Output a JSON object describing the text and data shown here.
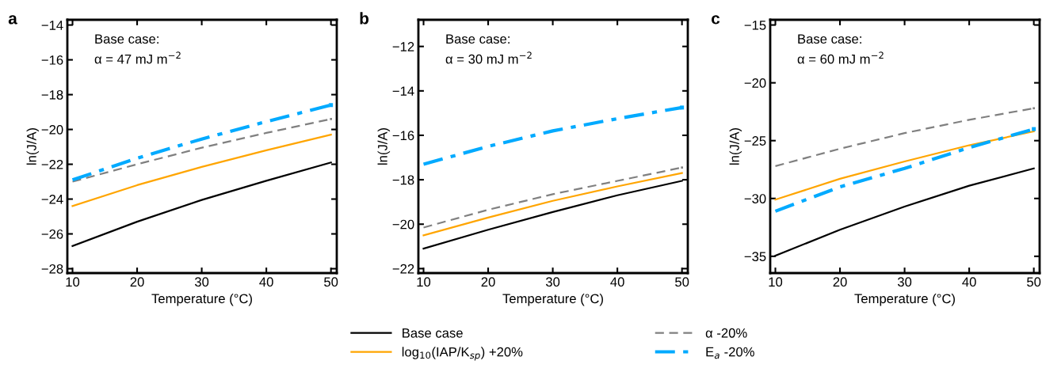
{
  "chart_data": [
    {
      "type": "line",
      "title": "a",
      "xlabel": "Temperature (°C)",
      "ylabel": "ln(J/A)",
      "x": [
        10,
        20,
        30,
        40,
        50
      ],
      "xlim": [
        9.2,
        50.9
      ],
      "xticks": [
        10,
        20,
        30,
        40,
        50
      ],
      "ylim": [
        -28.25,
        -13.7
      ],
      "yticks": [
        -28,
        -26,
        -24,
        -22,
        -20,
        -18,
        -16,
        -14
      ],
      "grid": false,
      "annotations": [
        "Base case:",
        "α = 47 mJ m$^{−2}$"
      ],
      "series": [
        {
          "color": "#000000",
          "line_style": "solid",
          "values": [
            -26.7,
            -25.3,
            -24.05,
            -22.95,
            -21.9
          ]
        },
        {
          "color": "#ffa500",
          "line_style": "solid",
          "values": [
            -24.4,
            -23.2,
            -22.15,
            -21.2,
            -20.3
          ]
        },
        {
          "color": "#808080",
          "line_style": "dashed",
          "values": [
            -23.0,
            -22.0,
            -21.05,
            -20.2,
            -19.4
          ]
        },
        {
          "color": "#00aaff",
          "line_style": "dashdot",
          "values": [
            -22.9,
            -21.65,
            -20.55,
            -19.55,
            -18.6
          ]
        }
      ]
    },
    {
      "type": "line",
      "title": "b",
      "xlabel": "Temperature (°C)",
      "ylabel": "ln(J/A)",
      "x": [
        10,
        20,
        30,
        40,
        50
      ],
      "xlim": [
        9.2,
        50.9
      ],
      "xticks": [
        10,
        20,
        30,
        40,
        50
      ],
      "ylim": [
        -22.2,
        -10.8
      ],
      "yticks": [
        -22,
        -20,
        -18,
        -16,
        -14,
        -12
      ],
      "grid": false,
      "legend": "bottom",
      "annotations": [
        "Base case:",
        "α = 30 mJ m$^{−2}$"
      ],
      "series": [
        {
          "name": "Base case",
          "color": "#000000",
          "line_style": "solid",
          "values": [
            -21.1,
            -20.25,
            -19.45,
            -18.7,
            -18.05
          ]
        },
        {
          "name": "log$_{10}$(IAP/K$_{sp}$) +20%",
          "color": "#ffa500",
          "line_style": "solid",
          "values": [
            -20.5,
            -19.7,
            -18.95,
            -18.3,
            -17.7
          ]
        },
        {
          "name": "α -20%",
          "color": "#808080",
          "line_style": "dashed",
          "values": [
            -20.15,
            -19.35,
            -18.65,
            -18.05,
            -17.45
          ]
        },
        {
          "name": "E$_{a}$ -20%",
          "color": "#00aaff",
          "line_style": "dashdot",
          "values": [
            -17.3,
            -16.5,
            -15.8,
            -15.25,
            -14.75
          ]
        }
      ]
    },
    {
      "type": "line",
      "title": "c",
      "xlabel": "Temperature (°C)",
      "ylabel": "ln(J/A)",
      "x": [
        10,
        20,
        30,
        40,
        50
      ],
      "xlim": [
        9.2,
        50.9
      ],
      "xticks": [
        10,
        20,
        30,
        40,
        50
      ],
      "ylim": [
        -36.45,
        -14.55
      ],
      "yticks": [
        -35,
        -30,
        -25,
        -20,
        -15
      ],
      "grid": false,
      "annotations": [
        "Base case:",
        "α = 60 mJ m$^{−2}$"
      ],
      "series": [
        {
          "color": "#000000",
          "line_style": "solid",
          "values": [
            -34.95,
            -32.7,
            -30.7,
            -28.9,
            -27.4
          ]
        },
        {
          "color": "#ffa500",
          "line_style": "solid",
          "values": [
            -30.1,
            -28.3,
            -26.8,
            -25.4,
            -24.2
          ]
        },
        {
          "color": "#808080",
          "line_style": "dashed",
          "values": [
            -27.2,
            -25.7,
            -24.35,
            -23.2,
            -22.2
          ]
        },
        {
          "color": "#00aaff",
          "line_style": "dashdot",
          "values": [
            -31.1,
            -29.0,
            -27.4,
            -25.6,
            -24.0
          ]
        }
      ]
    }
  ]
}
